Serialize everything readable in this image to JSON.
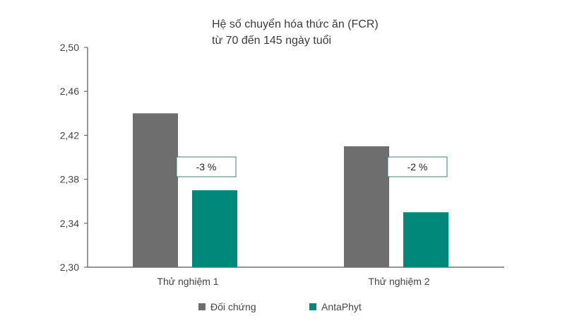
{
  "title_line1": "Hệ số chuyển hóa thức ăn (FCR)",
  "title_line2": "từ 70 đến 145 ngày tuổi",
  "chart_data": {
    "type": "bar",
    "title": "Hệ số chuyển hóa thức ăn (FCR) từ 70 đến 145 ngày tuổi",
    "categories": [
      "Thử nghiệm 1",
      "Thử nghiệm 2"
    ],
    "series": [
      {
        "name": "Đối chứng",
        "values": [
          2.44,
          2.41
        ],
        "color": "#6e6e6e"
      },
      {
        "name": "AntaPhyt",
        "values": [
          2.37,
          2.35
        ],
        "color": "#00897a"
      }
    ],
    "ylim": [
      2.3,
      2.5
    ],
    "yticks": [
      "2,30",
      "2,34",
      "2,38",
      "2,42",
      "2,46",
      "2,50"
    ],
    "ytick_values": [
      2.3,
      2.34,
      2.38,
      2.42,
      2.46,
      2.5
    ],
    "annotations": [
      "-3 %",
      "-2 %"
    ],
    "grid": false,
    "legend_position": "bottom"
  }
}
